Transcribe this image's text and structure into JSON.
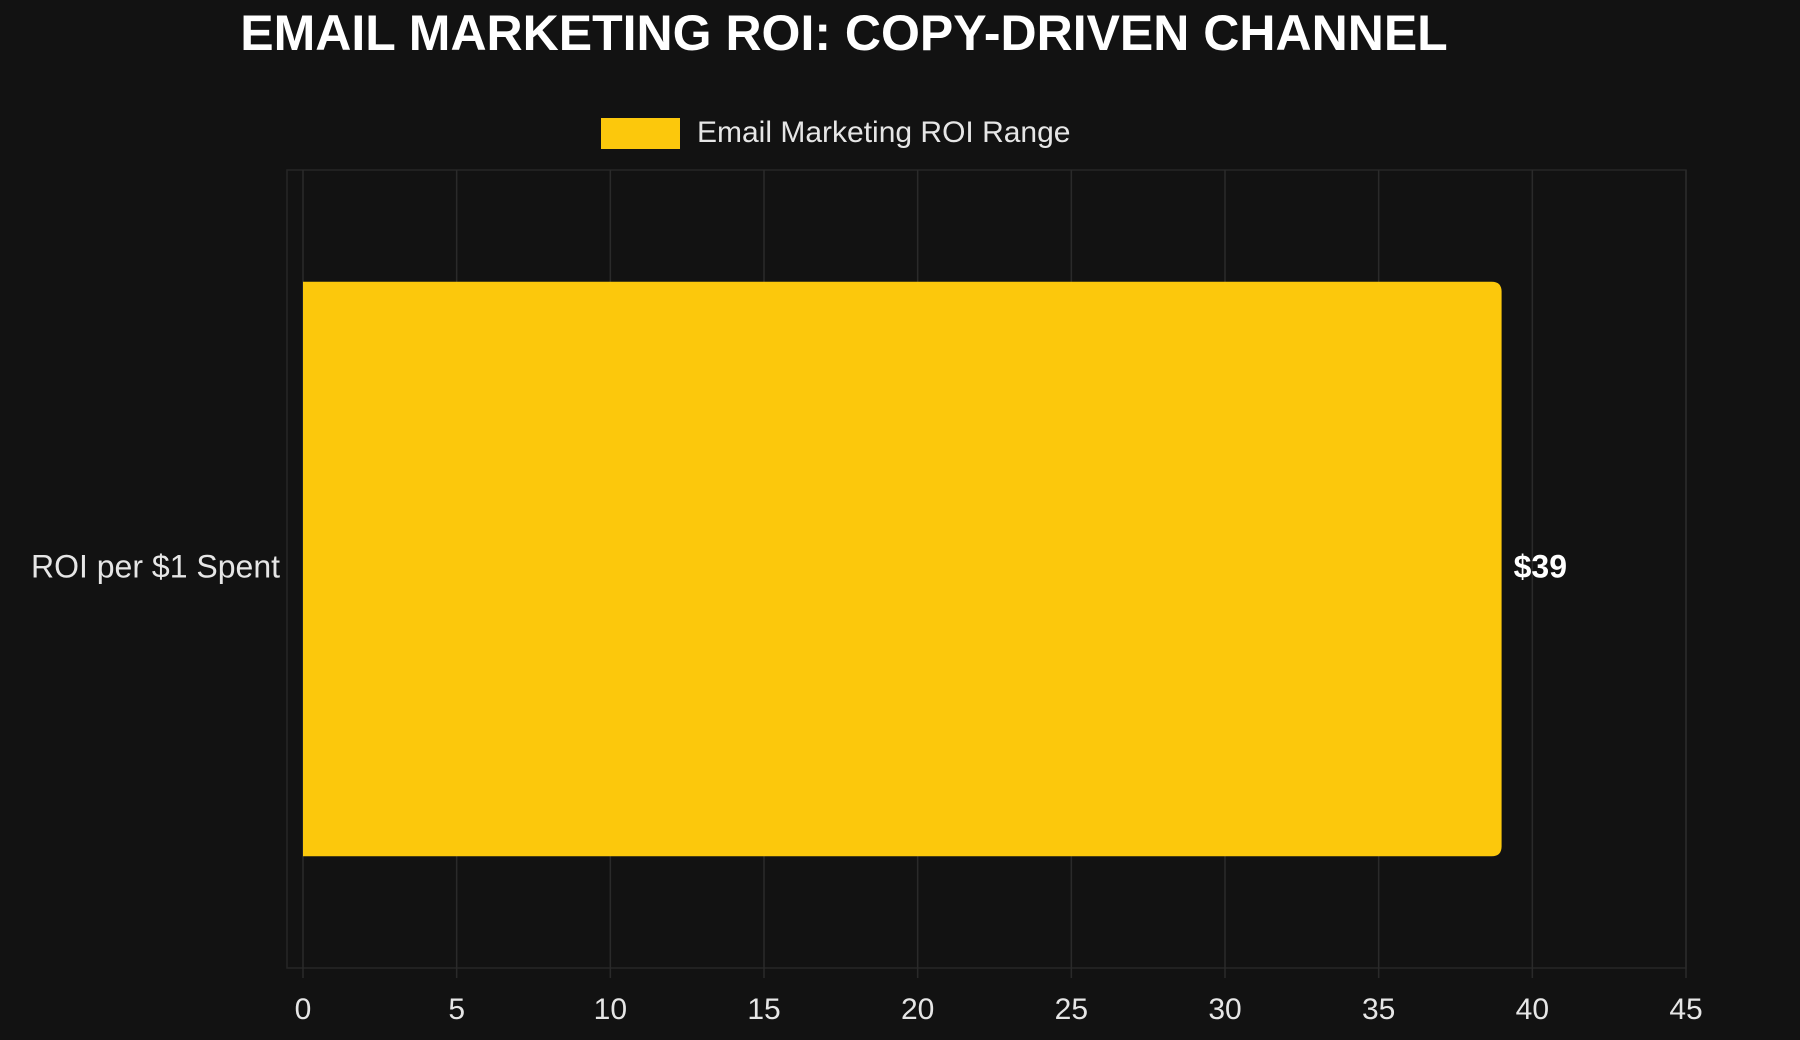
{
  "chart_data": {
    "type": "hbar",
    "title": "EMAIL MARKETING ROI: COPY-DRIVEN CHANNEL",
    "categories": [
      "ROI per $1 Spent"
    ],
    "series": [
      {
        "name": "Email Marketing ROI Range",
        "color": "#fcc80c",
        "values": [
          39
        ],
        "value_labels": [
          "$39"
        ]
      }
    ],
    "xlim": [
      0,
      45
    ],
    "xticks": [
      0,
      5,
      10,
      15,
      20,
      25,
      30,
      35,
      40,
      45
    ],
    "grid": true,
    "legend": "top"
  }
}
